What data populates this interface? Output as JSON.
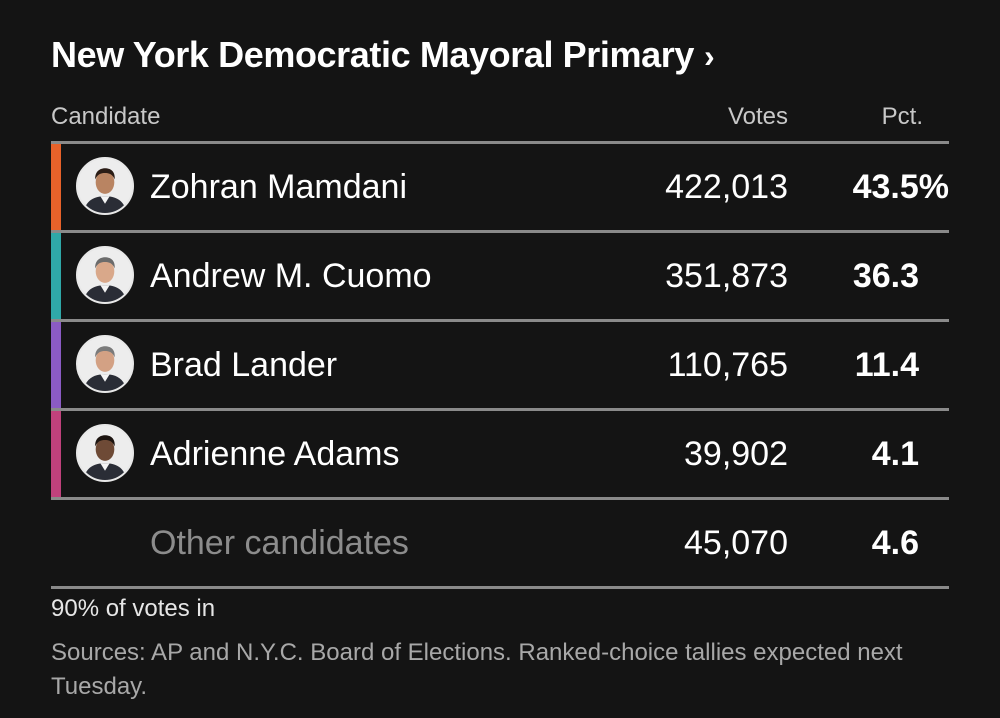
{
  "title": "New York Democratic Mayoral Primary",
  "title_chevron": "›",
  "columns": {
    "candidate": "Candidate",
    "votes": "Votes",
    "pct": "Pct."
  },
  "chart_data": {
    "type": "table",
    "title": "New York Democratic Mayoral Primary",
    "columns": [
      "Candidate",
      "Votes",
      "Pct."
    ],
    "rows": [
      {
        "name": "Zohran Mamdani",
        "votes": "422,013",
        "pct": "43.5%",
        "color": "#e8622a",
        "photo": "candidate-photo"
      },
      {
        "name": "Andrew M. Cuomo",
        "votes": "351,873",
        "pct": "36.3",
        "color": "#2fa8a8",
        "photo": "candidate-photo"
      },
      {
        "name": "Brad Lander",
        "votes": "110,765",
        "pct": "11.4",
        "color": "#8b5bc4",
        "photo": "candidate-photo"
      },
      {
        "name": "Adrienne Adams",
        "votes": "39,902",
        "pct": "4.1",
        "color": "#c0417c",
        "photo": "candidate-photo"
      },
      {
        "name": "Other candidates",
        "votes": "45,070",
        "pct": "4.6",
        "color": null,
        "photo": null
      }
    ]
  },
  "footer": {
    "reporting": "90% of votes in",
    "sources": "Sources: AP and N.Y.C. Board of Elections. Ranked-choice tallies expected next Tuesday."
  },
  "colors": {
    "background": "#141414",
    "rule": "#8a8a8a"
  }
}
